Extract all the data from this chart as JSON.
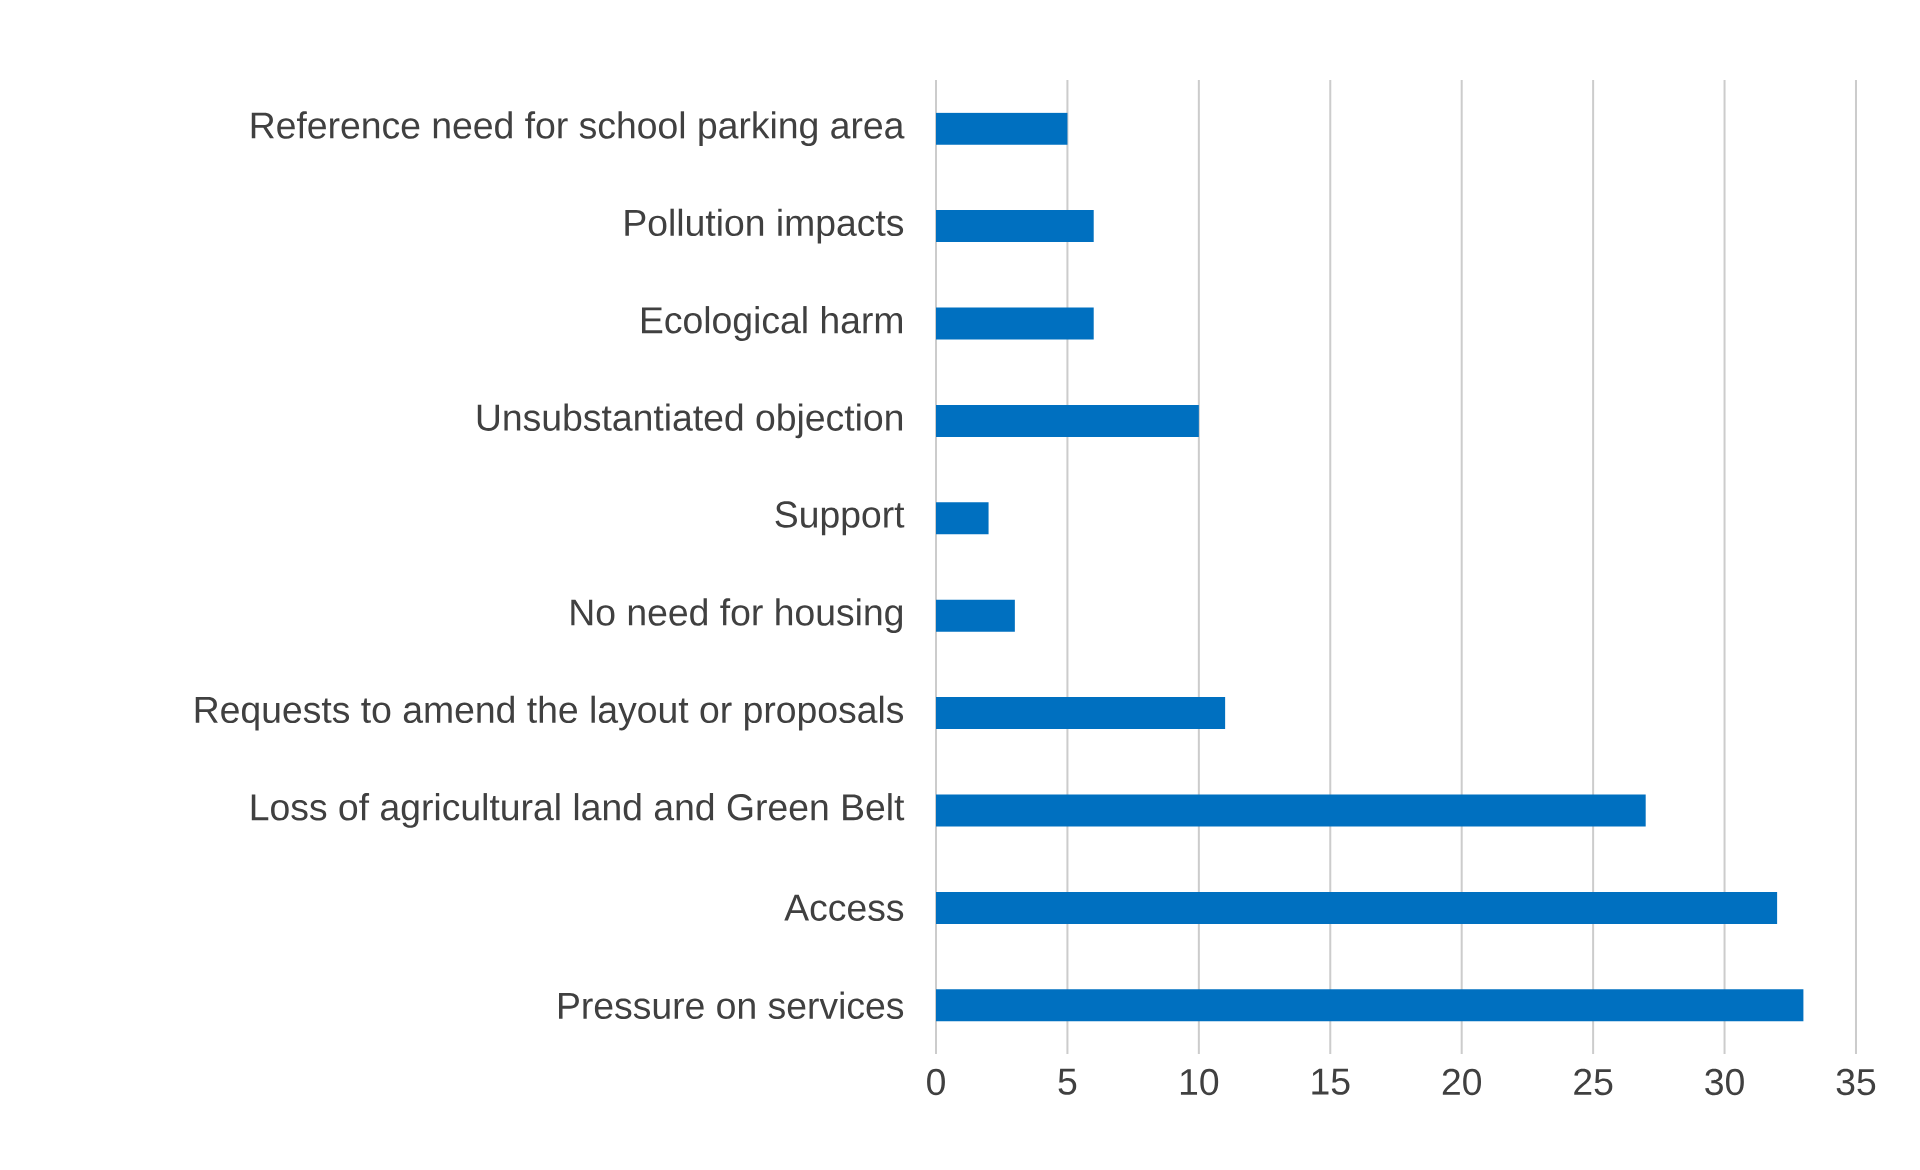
{
  "chart_data": {
    "type": "bar",
    "orientation": "horizontal",
    "categories": [
      "Reference need for school parking area",
      "Pollution impacts",
      "Ecological harm",
      "Unsubstantiated objection",
      "Support",
      "No need for housing",
      "Requests to amend the layout or proposals",
      "Loss of agricultural land and Green Belt",
      "Access",
      "Pressure on services"
    ],
    "values": [
      5,
      6,
      6,
      10,
      2,
      3,
      11,
      27,
      32,
      33
    ],
    "color": "#0070c0",
    "xlim": [
      0,
      35
    ],
    "xticks": [
      0,
      5,
      10,
      15,
      20,
      25,
      30,
      35
    ],
    "grid": "x"
  }
}
